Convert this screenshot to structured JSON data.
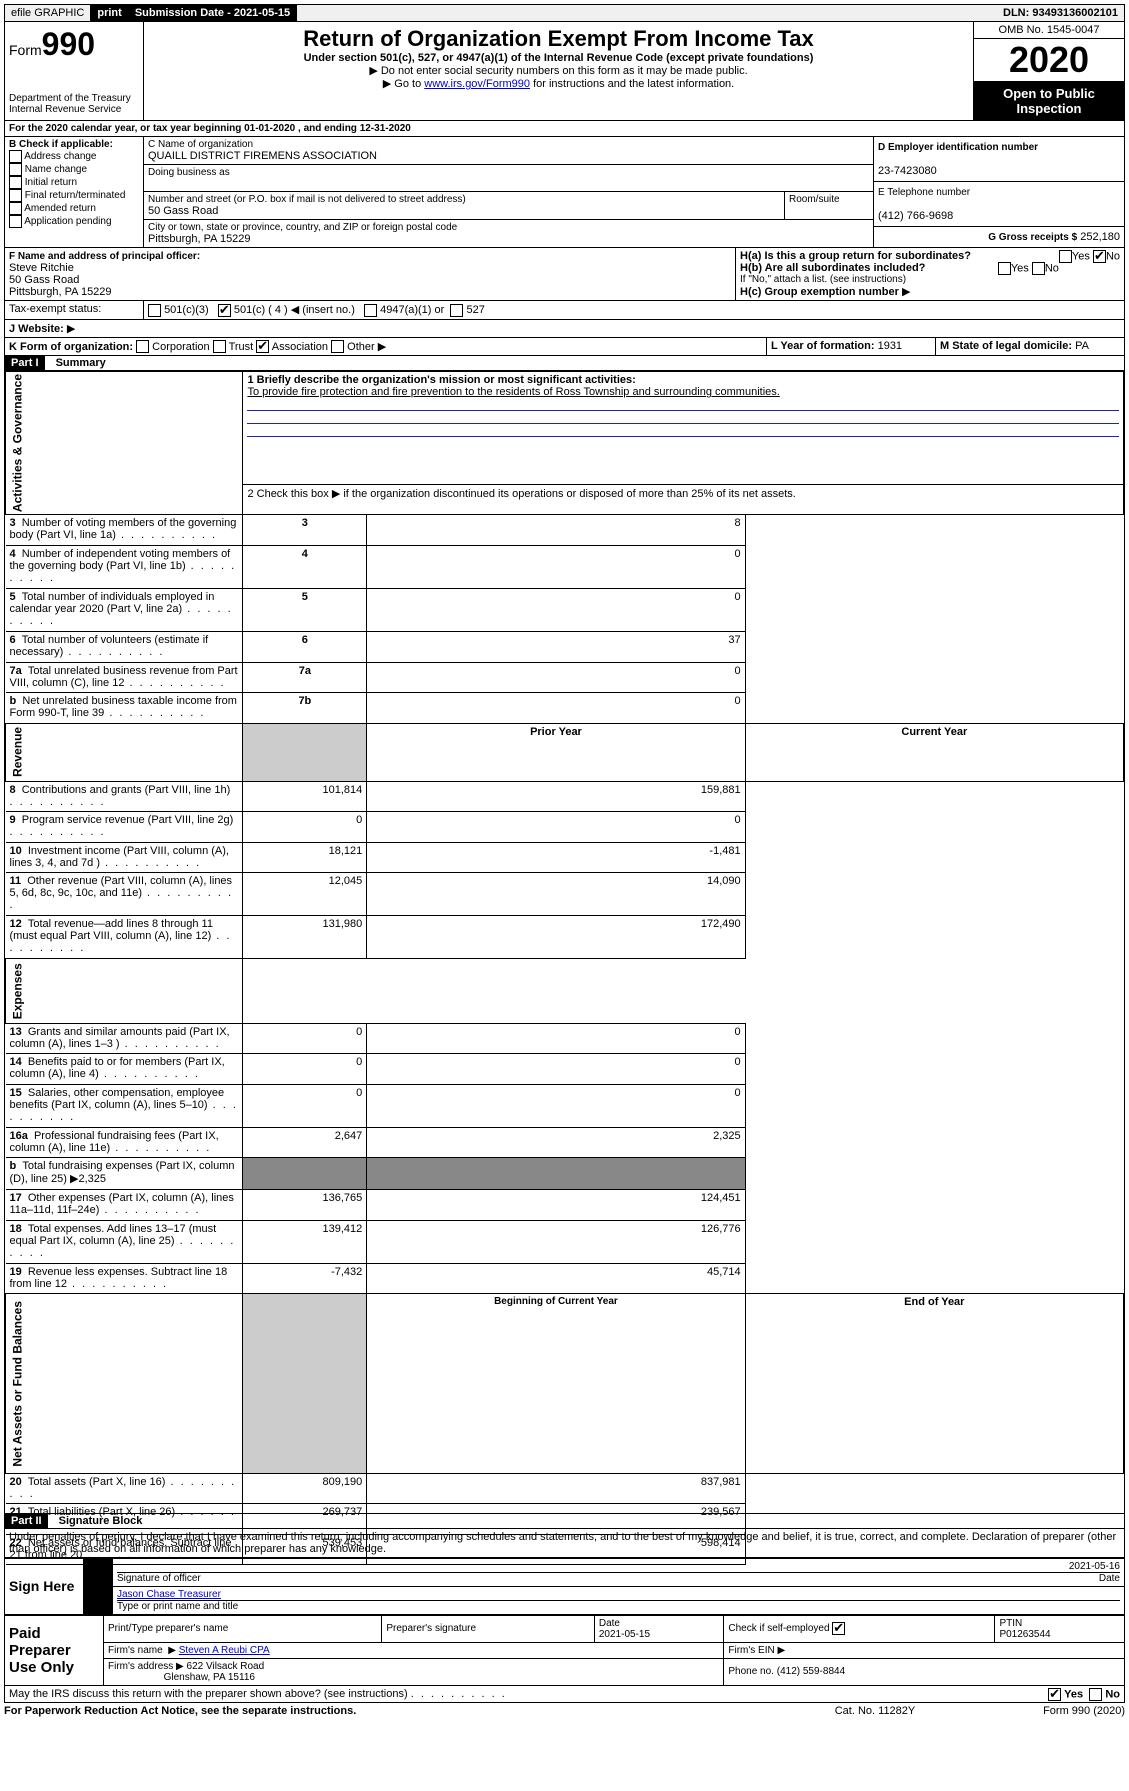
{
  "topbar": {
    "efile": "efile GRAPHIC",
    "print": "print",
    "sub_label": "Submission Date - 2021-05-15",
    "dln": "DLN: 93493136002101"
  },
  "header": {
    "form_prefix": "Form",
    "form_no": "990",
    "dept": "Department of the Treasury\nInternal Revenue Service",
    "title": "Return of Organization Exempt From Income Tax",
    "subtitle": "Under section 501(c), 527, or 4947(a)(1) of the Internal Revenue Code (except private foundations)",
    "note1": "Do not enter social security numbers on this form as it may be made public.",
    "note2_a": "Go to ",
    "note2_link": "www.irs.gov/Form990",
    "note2_b": " for instructions and the latest information.",
    "omb": "OMB No. 1545-0047",
    "year": "2020",
    "open": "Open to Public Inspection"
  },
  "lineA": "For the 2020 calendar year, or tax year beginning 01-01-2020     , and ending 12-31-2020",
  "boxB": {
    "label": "B Check if applicable:",
    "opts": [
      "Address change",
      "Name change",
      "Initial return",
      "Final return/terminated",
      "Amended return",
      "Application pending"
    ]
  },
  "boxC": {
    "label": "C Name of organization",
    "name": "QUAILL DISTRICT FIREMENS ASSOCIATION",
    "dba_label": "Doing business as",
    "addr_label": "Number and street (or P.O. box if mail is not delivered to street address)",
    "room_label": "Room/suite",
    "addr": "50 Gass Road",
    "city_label": "City or town, state or province, country, and ZIP or foreign postal code",
    "city": "Pittsburgh, PA  15229"
  },
  "boxD": {
    "label": "D Employer identification number",
    "val": "23-7423080"
  },
  "boxE": {
    "label": "E Telephone number",
    "val": "(412) 766-9698"
  },
  "boxG": {
    "label": "G Gross receipts $",
    "val": "252,180"
  },
  "boxF": {
    "label": "F  Name and address of principal officer:",
    "name": "Steve Ritchie",
    "line1": "50 Gass Road",
    "line2": "Pittsburgh, PA  15229"
  },
  "boxH": {
    "a": "H(a)  Is this a group return for subordinates?",
    "b": "H(b)  Are all subordinates included?",
    "note": "If \"No,\" attach a list. (see instructions)",
    "c": "H(c)  Group exemption number"
  },
  "boxI": {
    "label": "Tax-exempt status:",
    "o1": "501(c)(3)",
    "o2": "501(c) ( 4 )",
    "insert": "(insert no.)",
    "o3": "4947(a)(1) or",
    "o4": "527"
  },
  "boxJ": {
    "label": "J    Website:"
  },
  "boxK": {
    "label": "K Form of organization:",
    "o1": "Corporation",
    "o2": "Trust",
    "o3": "Association",
    "o4": "Other"
  },
  "boxL": {
    "label": "L Year of formation:",
    "val": "1931"
  },
  "boxM": {
    "label": "M State of legal domicile:",
    "val": "PA"
  },
  "part1": {
    "title": "Part I",
    "name": "Summary",
    "l1_label": "1  Briefly describe the organization's mission or most significant activities:",
    "l1_text": "To provide fire protection and fire prevention to the residents of Ross Township and surrounding communities.",
    "l2": "2    Check this box ▶       if the organization discontinued its operations or disposed of more than 25% of its net assets.",
    "rows_gov": [
      {
        "n": "3",
        "t": "Number of voting members of the governing body (Part VI, line 1a)",
        "box": "3",
        "v": "8"
      },
      {
        "n": "4",
        "t": "Number of independent voting members of the governing body (Part VI, line 1b)",
        "box": "4",
        "v": "0"
      },
      {
        "n": "5",
        "t": "Total number of individuals employed in calendar year 2020 (Part V, line 2a)",
        "box": "5",
        "v": "0"
      },
      {
        "n": "6",
        "t": "Total number of volunteers (estimate if necessary)",
        "box": "6",
        "v": "37"
      },
      {
        "n": "7a",
        "t": "Total unrelated business revenue from Part VIII, column (C), line 12",
        "box": "7a",
        "v": "0"
      },
      {
        "n": "b",
        "t": "Net unrelated business taxable income from Form 990-T, line 39",
        "box": "7b",
        "v": "0"
      }
    ],
    "col_py": "Prior Year",
    "col_cy": "Current Year",
    "rows_rev": [
      {
        "n": "8",
        "t": "Contributions and grants (Part VIII, line 1h)",
        "py": "101,814",
        "cy": "159,881"
      },
      {
        "n": "9",
        "t": "Program service revenue (Part VIII, line 2g)",
        "py": "0",
        "cy": "0"
      },
      {
        "n": "10",
        "t": "Investment income (Part VIII, column (A), lines 3, 4, and 7d )",
        "py": "18,121",
        "cy": "-1,481"
      },
      {
        "n": "11",
        "t": "Other revenue (Part VIII, column (A), lines 5, 6d, 8c, 9c, 10c, and 11e)",
        "py": "12,045",
        "cy": "14,090"
      },
      {
        "n": "12",
        "t": "Total revenue—add lines 8 through 11 (must equal Part VIII, column (A), line 12)",
        "py": "131,980",
        "cy": "172,490"
      }
    ],
    "rows_exp": [
      {
        "n": "13",
        "t": "Grants and similar amounts paid (Part IX, column (A), lines 1–3 )",
        "py": "0",
        "cy": "0"
      },
      {
        "n": "14",
        "t": "Benefits paid to or for members (Part IX, column (A), line 4)",
        "py": "0",
        "cy": "0"
      },
      {
        "n": "15",
        "t": "Salaries, other compensation, employee benefits (Part IX, column (A), lines 5–10)",
        "py": "0",
        "cy": "0"
      },
      {
        "n": "16a",
        "t": "Professional fundraising fees (Part IX, column (A), line 11e)",
        "py": "2,647",
        "cy": "2,325"
      },
      {
        "n": "b",
        "t": "Total fundraising expenses (Part IX, column (D), line 25) ▶2,325",
        "py": "",
        "cy": ""
      },
      {
        "n": "17",
        "t": "Other expenses (Part IX, column (A), lines 11a–11d, 11f–24e)",
        "py": "136,765",
        "cy": "124,451"
      },
      {
        "n": "18",
        "t": "Total expenses. Add lines 13–17 (must equal Part IX, column (A), line 25)",
        "py": "139,412",
        "cy": "126,776"
      },
      {
        "n": "19",
        "t": "Revenue less expenses. Subtract line 18 from line 12",
        "py": "-7,432",
        "cy": "45,714"
      }
    ],
    "col_boy": "Beginning of Current Year",
    "col_eoy": "End of Year",
    "rows_net": [
      {
        "n": "20",
        "t": "Total assets (Part X, line 16)",
        "py": "809,190",
        "cy": "837,981"
      },
      {
        "n": "21",
        "t": "Total liabilities (Part X, line 26)",
        "py": "269,737",
        "cy": "239,567"
      },
      {
        "n": "22",
        "t": "Net assets or fund balances. Subtract line 21 from line 20",
        "py": "539,453",
        "cy": "598,414"
      }
    ],
    "vlabels": {
      "gov": "Activities & Governance",
      "rev": "Revenue",
      "exp": "Expenses",
      "net": "Net Assets or Fund Balances"
    }
  },
  "part2": {
    "title": "Part II",
    "name": "Signature Block",
    "decl": "Under penalties of perjury, I declare that I have examined this return, including accompanying schedules and statements, and to the best of my knowledge and belief, it is true, correct, and complete. Declaration of preparer (other than officer) is based on all information of which preparer has any knowledge.",
    "sign_here": "Sign Here",
    "sig_officer": "Signature of officer",
    "date1": "2021-05-16",
    "date_lbl": "Date",
    "officer_name": "Jason Chase  Treasurer",
    "type_name": "Type or print name and title",
    "paid": "Paid Preparer Use Only",
    "h1": "Print/Type preparer's name",
    "h2": "Preparer's signature",
    "h3": "Date",
    "h4": "Check         if self-employed",
    "h5": "PTIN",
    "date2": "2021-05-15",
    "ptin": "P01263544",
    "firm_name_lbl": "Firm's name",
    "firm_name": "Steven A Reubi CPA",
    "firm_ein": "Firm's EIN",
    "firm_addr_lbl": "Firm's address",
    "firm_addr1": "622 Vilsack Road",
    "firm_addr2": "Glenshaw, PA  15116",
    "phone_lbl": "Phone no.",
    "phone": "(412) 559-8844",
    "discuss": "May the IRS discuss this return with the preparer shown above? (see instructions)",
    "yes": "Yes",
    "no": "No"
  },
  "footer": {
    "l": "For Paperwork Reduction Act Notice, see the separate instructions.",
    "c": "Cat. No. 11282Y",
    "r": "Form 990 (2020)"
  }
}
